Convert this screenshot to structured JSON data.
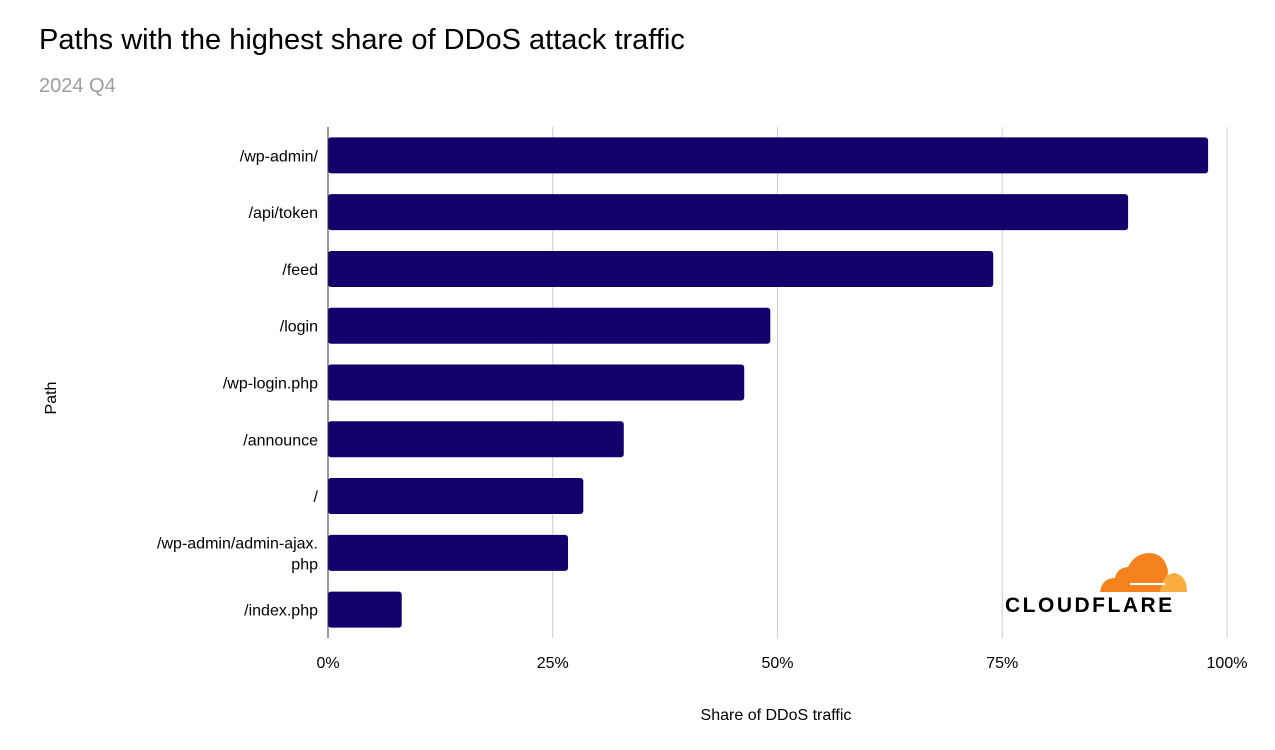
{
  "chart_data": {
    "type": "bar",
    "orientation": "horizontal",
    "title": "Paths with the highest share of DDoS attack traffic",
    "subtitle": "2024 Q4",
    "xlabel": "Share of DDoS traffic",
    "ylabel": "Path",
    "categories": [
      "/wp-admin/",
      "/api/token",
      "/feed",
      "/login",
      "/wp-login.php",
      "/announce",
      "/",
      "/wp-admin/admin-ajax.php",
      "/index.php"
    ],
    "category_display": [
      [
        "/wp-admin/"
      ],
      [
        "/api/token"
      ],
      [
        "/feed"
      ],
      [
        "/login"
      ],
      [
        "/wp-login.php"
      ],
      [
        "/announce"
      ],
      [
        "/"
      ],
      [
        "/wp-admin/admin-ajax.",
        "php"
      ],
      [
        "/index.php"
      ]
    ],
    "values": [
      97.9,
      89.0,
      74.0,
      49.2,
      46.3,
      32.9,
      28.4,
      26.7,
      8.2
    ],
    "xlim": [
      0,
      100
    ],
    "xticks": [
      0,
      25,
      50,
      75,
      100
    ],
    "xtick_labels": [
      "0%",
      "25%",
      "50%",
      "75%",
      "100%"
    ],
    "grid": true,
    "colors": {
      "bar": "#12006b",
      "grid": "#cccccc"
    }
  },
  "logo": {
    "text": "CLOUDFLARE",
    "colors": {
      "primary": "#f6821f",
      "secondary": "#fbad41"
    }
  }
}
